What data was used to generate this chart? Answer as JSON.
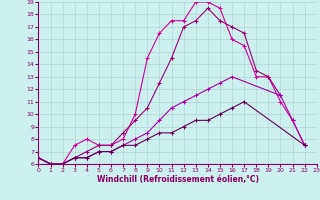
{
  "xlabel": "Windchill (Refroidissement éolien,°C)",
  "xlim": [
    0,
    23
  ],
  "ylim": [
    6,
    19
  ],
  "xticks": [
    0,
    1,
    2,
    3,
    4,
    5,
    6,
    7,
    8,
    9,
    10,
    11,
    12,
    13,
    14,
    15,
    16,
    17,
    18,
    19,
    20,
    21,
    22,
    23
  ],
  "yticks": [
    6,
    7,
    8,
    9,
    10,
    11,
    12,
    13,
    14,
    15,
    16,
    17,
    18,
    19
  ],
  "bg_color": "#cdf0ee",
  "line_color1": "#cc0099",
  "line_color2": "#990077",
  "line_color3": "#aa00aa",
  "line_color4": "#660055",
  "series1_x": [
    0,
    1,
    2,
    3,
    4,
    5,
    6,
    7,
    8,
    9,
    10,
    11,
    12,
    13,
    14,
    15,
    16,
    17,
    18,
    19,
    20,
    21,
    22
  ],
  "series1_y": [
    6.5,
    6.0,
    6.0,
    7.5,
    8.0,
    7.5,
    7.5,
    8.0,
    10.0,
    14.5,
    16.5,
    17.5,
    17.5,
    19.0,
    19.0,
    18.5,
    16.0,
    15.5,
    13.0,
    13.0,
    11.0,
    9.5,
    7.5
  ],
  "series2_x": [
    0,
    1,
    2,
    3,
    4,
    5,
    6,
    7,
    8,
    9,
    10,
    11,
    12,
    13,
    14,
    15,
    16,
    17,
    18,
    19,
    20
  ],
  "series2_y": [
    6.5,
    6.0,
    6.0,
    6.5,
    7.0,
    7.5,
    7.5,
    8.5,
    9.5,
    10.5,
    12.5,
    14.5,
    17.0,
    17.5,
    18.5,
    17.5,
    17.0,
    16.5,
    13.5,
    13.0,
    11.5
  ],
  "series3_x": [
    0,
    1,
    2,
    3,
    4,
    5,
    6,
    7,
    8,
    9,
    10,
    11,
    12,
    13,
    14,
    15,
    16,
    20,
    21,
    22
  ],
  "series3_y": [
    6.5,
    6.0,
    6.0,
    6.5,
    6.5,
    7.0,
    7.0,
    7.5,
    8.0,
    8.5,
    9.5,
    10.5,
    11.0,
    11.5,
    12.0,
    12.5,
    13.0,
    11.5,
    9.5,
    7.5
  ],
  "series4_x": [
    0,
    1,
    2,
    3,
    4,
    5,
    6,
    7,
    8,
    9,
    10,
    11,
    12,
    13,
    14,
    15,
    16,
    17,
    22
  ],
  "series4_y": [
    6.5,
    6.0,
    6.0,
    6.5,
    6.5,
    7.0,
    7.0,
    7.5,
    7.5,
    8.0,
    8.5,
    8.5,
    9.0,
    9.5,
    9.5,
    10.0,
    10.5,
    11.0,
    7.5
  ]
}
